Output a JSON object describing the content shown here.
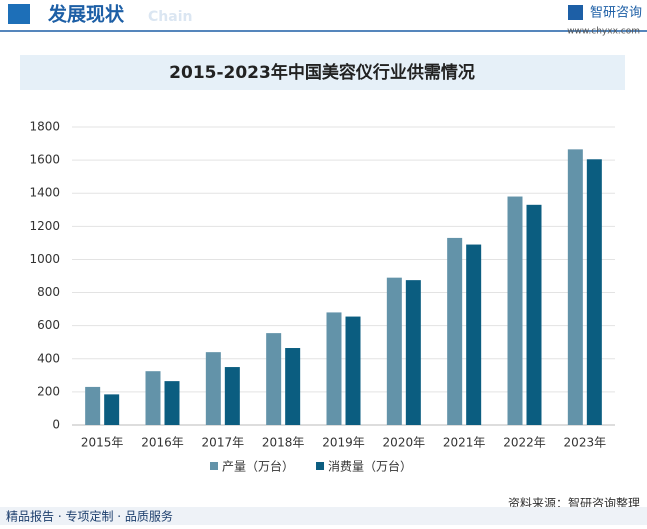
{
  "header": {
    "title": "发展现状",
    "subtitle": "Chain"
  },
  "logo": {
    "name": "智研咨询",
    "url": "www.chyxx.com"
  },
  "footer": {
    "tagline": "精品报告 · 专项定制 · 品质服务"
  },
  "chart_data": {
    "type": "bar",
    "title": "2015-2023年中国美容仪行业供需情况",
    "categories": [
      "2015年",
      "2016年",
      "2017年",
      "2018年",
      "2019年",
      "2020年",
      "2021年",
      "2022年",
      "2023年"
    ],
    "series": [
      {
        "name": "产量（万台）",
        "color": "#6393a9",
        "values": [
          230,
          325,
          440,
          555,
          680,
          890,
          1130,
          1380,
          1665
        ]
      },
      {
        "name": "消费量（万台）",
        "color": "#0b5d80",
        "values": [
          185,
          265,
          350,
          465,
          655,
          875,
          1090,
          1330,
          1605
        ]
      }
    ],
    "ylim": [
      0,
      1800
    ],
    "yticks": [
      0,
      200,
      400,
      600,
      800,
      1000,
      1200,
      1400,
      1600,
      1800
    ],
    "grid": true,
    "legend": "bottom",
    "source": "资料来源：智研咨询整理"
  }
}
